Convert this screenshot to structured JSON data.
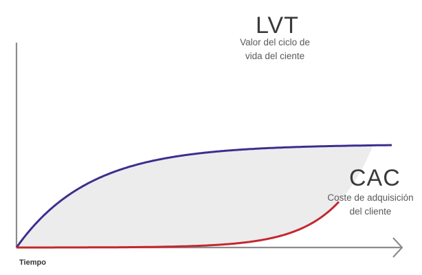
{
  "diagram": {
    "lvt": {
      "title": "LVT",
      "subtitle_lines": [
        "Valor del ciclo de",
        "vida del ciente"
      ]
    },
    "cac": {
      "title": "CAC",
      "subtitle_lines": [
        "Coste de adquisición",
        "del cliente"
      ]
    },
    "x_axis_label": "Tiempo"
  },
  "colors": {
    "lvt_curve": "#c4272e",
    "cac_curve": "#3a2f8f",
    "axis": "#8c8c8c",
    "shaded_region": "#ececed"
  }
}
